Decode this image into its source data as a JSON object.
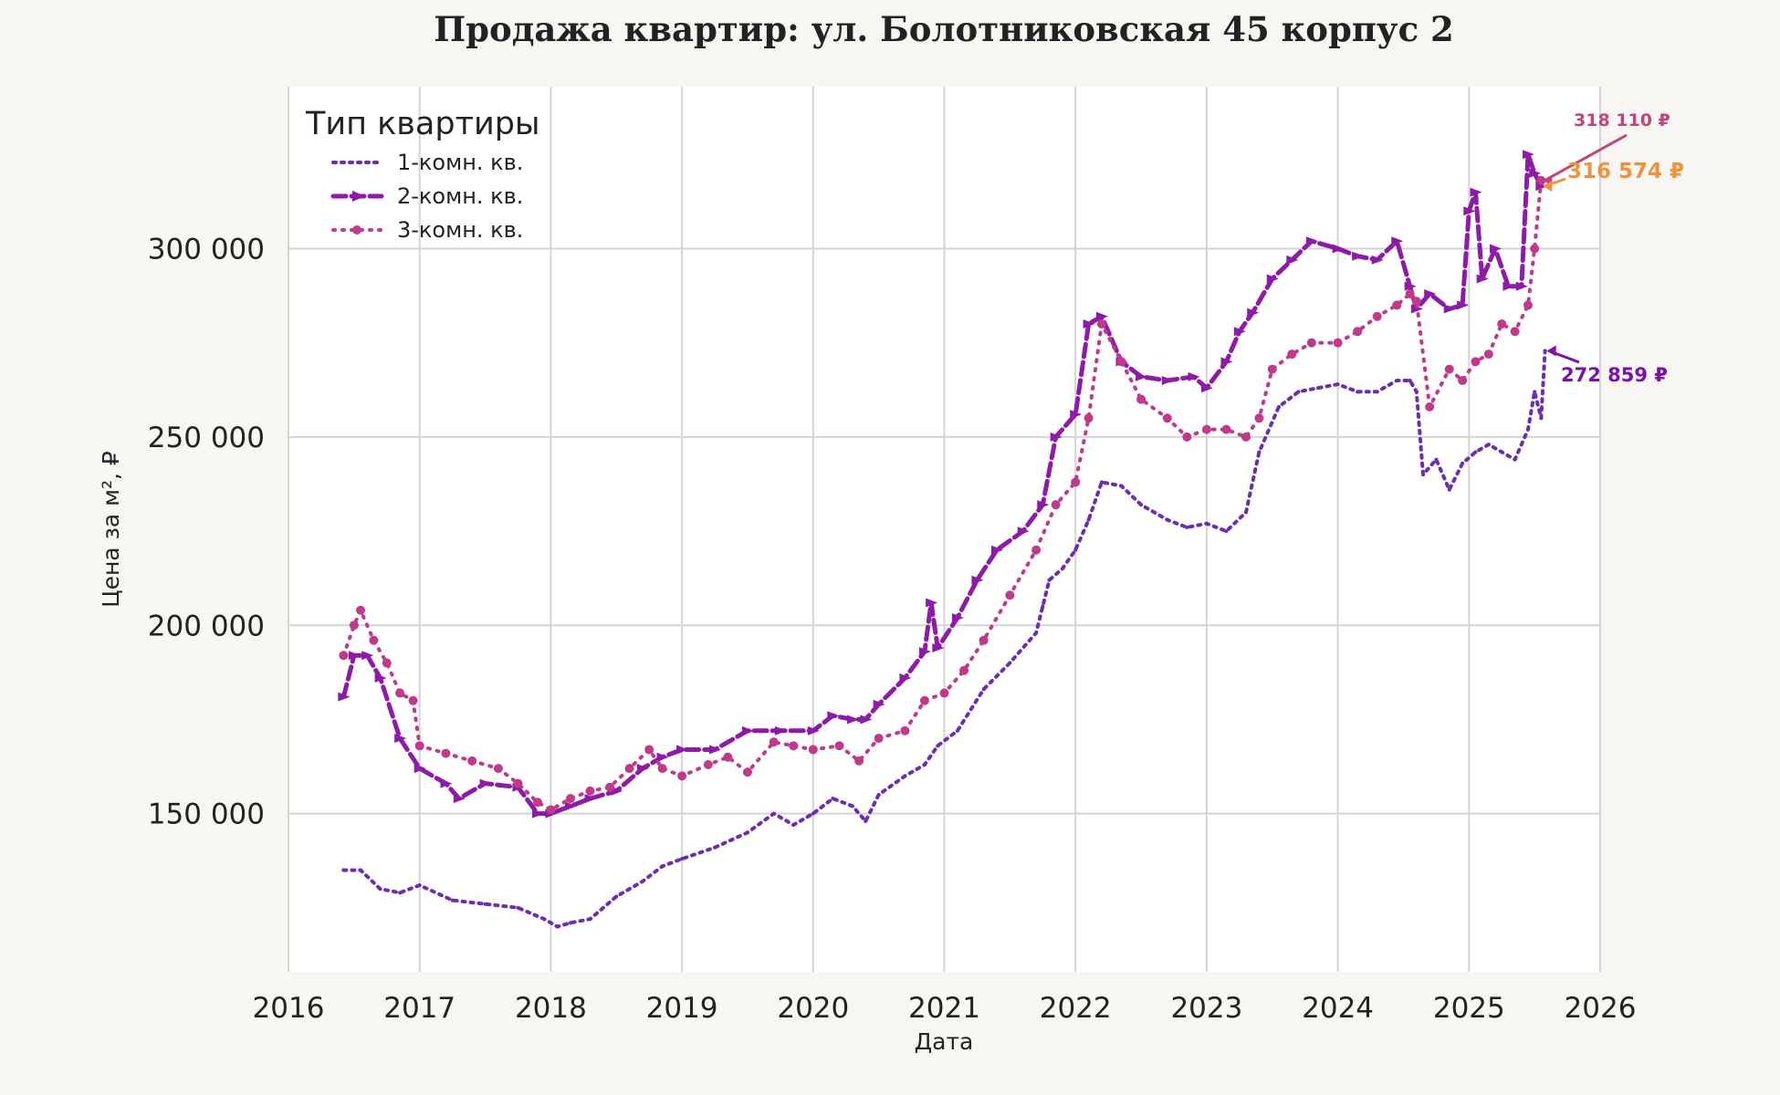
{
  "chart_data": {
    "type": "line",
    "title": "Продажа квартир: ул. Болотниковская 45 корпус 2",
    "xlabel": "Дата",
    "ylabel": "Цена за м², ₽",
    "x_tick_labels": [
      "2016",
      "2017",
      "2018",
      "2019",
      "2020",
      "2021",
      "2022",
      "2023",
      "2024",
      "2025",
      "2026"
    ],
    "y_tick_labels": [
      "150 000",
      "200 000",
      "250 000",
      "300 000"
    ],
    "x_ticks": [
      2016,
      2017,
      2018,
      2019,
      2020,
      2021,
      2022,
      2023,
      2024,
      2025,
      2026
    ],
    "y_ticks": [
      150000,
      200000,
      250000,
      300000
    ],
    "xlim": [
      2016,
      2026
    ],
    "ylim": [
      108000,
      343000
    ],
    "grid": true,
    "legend": {
      "title": "Тип квартиры",
      "placement": "top-left"
    },
    "series": [
      {
        "name": "1-комн. кв.",
        "color": "#6a2db4",
        "style": "dotted",
        "x": [
          2016.42,
          2016.55,
          2016.7,
          2016.85,
          2017.0,
          2017.25,
          2017.5,
          2017.75,
          2017.95,
          2018.05,
          2018.15,
          2018.3,
          2018.5,
          2018.7,
          2018.85,
          2019.0,
          2019.25,
          2019.5,
          2019.7,
          2019.85,
          2020.0,
          2020.15,
          2020.3,
          2020.4,
          2020.5,
          2020.7,
          2020.85,
          2020.95,
          2021.1,
          2021.3,
          2021.5,
          2021.7,
          2021.75,
          2021.8,
          2021.9,
          2022.0,
          2022.1,
          2022.2,
          2022.35,
          2022.5,
          2022.7,
          2022.85,
          2023.0,
          2023.15,
          2023.3,
          2023.4,
          2023.55,
          2023.7,
          2023.85,
          2024.0,
          2024.15,
          2024.3,
          2024.45,
          2024.55,
          2024.6,
          2024.65,
          2024.75,
          2024.85,
          2024.95,
          2025.05,
          2025.15,
          2025.25,
          2025.35,
          2025.45,
          2025.5,
          2025.55,
          2025.58
        ],
        "y": [
          135000,
          135000,
          130000,
          129000,
          131000,
          127000,
          126000,
          125000,
          122000,
          120000,
          121000,
          122000,
          128000,
          132000,
          136000,
          138000,
          141000,
          145000,
          150000,
          147000,
          150000,
          154000,
          152000,
          148000,
          155000,
          160000,
          163000,
          168000,
          172000,
          183000,
          190000,
          198000,
          205000,
          212000,
          215000,
          220000,
          228000,
          238000,
          237000,
          232000,
          228000,
          226000,
          227000,
          225000,
          230000,
          246000,
          258000,
          262000,
          263000,
          264000,
          262000,
          262000,
          265000,
          265000,
          262000,
          240000,
          244000,
          236000,
          243000,
          246000,
          248000,
          246000,
          244000,
          252000,
          262000,
          255000,
          272859
        ]
      },
      {
        "name": "2-комн. кв.",
        "color": "#8e1aa8",
        "style": "dashed-arrow",
        "x": [
          2016.42,
          2016.5,
          2016.6,
          2016.7,
          2016.85,
          2017.0,
          2017.2,
          2017.3,
          2017.5,
          2017.75,
          2017.9,
          2018.0,
          2018.15,
          2018.3,
          2018.5,
          2018.7,
          2018.85,
          2019.0,
          2019.25,
          2019.5,
          2019.75,
          2020.0,
          2020.15,
          2020.3,
          2020.4,
          2020.5,
          2020.7,
          2020.85,
          2020.9,
          2020.95,
          2021.1,
          2021.25,
          2021.4,
          2021.6,
          2021.75,
          2021.85,
          2022.0,
          2022.1,
          2022.2,
          2022.35,
          2022.5,
          2022.7,
          2022.9,
          2023.0,
          2023.15,
          2023.25,
          2023.35,
          2023.5,
          2023.65,
          2023.8,
          2024.0,
          2024.15,
          2024.3,
          2024.45,
          2024.55,
          2024.6,
          2024.7,
          2024.85,
          2024.95,
          2025.0,
          2025.05,
          2025.1,
          2025.2,
          2025.3,
          2025.4,
          2025.45,
          2025.5,
          2025.55
        ],
        "y": [
          181000,
          192000,
          192000,
          186000,
          170000,
          162000,
          158000,
          154000,
          158000,
          157000,
          150000,
          150000,
          152000,
          154000,
          156000,
          162000,
          165000,
          167000,
          167000,
          172000,
          172000,
          172000,
          176000,
          175000,
          175000,
          179000,
          186000,
          193000,
          206000,
          194000,
          202000,
          212000,
          220000,
          225000,
          232000,
          250000,
          256000,
          280000,
          282000,
          270000,
          266000,
          265000,
          266000,
          263000,
          270000,
          278000,
          283000,
          292000,
          297000,
          302000,
          300000,
          298000,
          297000,
          302000,
          290000,
          284000,
          288000,
          284000,
          285000,
          310000,
          315000,
          292000,
          300000,
          290000,
          290000,
          325000,
          320000,
          316574
        ]
      },
      {
        "name": "3-комн. кв.",
        "color": "#c0398a",
        "style": "dotted-circle",
        "x": [
          2016.42,
          2016.5,
          2016.55,
          2016.65,
          2016.75,
          2016.85,
          2016.95,
          2017.0,
          2017.2,
          2017.4,
          2017.6,
          2017.75,
          2017.9,
          2018.0,
          2018.15,
          2018.3,
          2018.45,
          2018.6,
          2018.75,
          2018.85,
          2019.0,
          2019.2,
          2019.35,
          2019.5,
          2019.7,
          2019.85,
          2020.0,
          2020.2,
          2020.35,
          2020.5,
          2020.7,
          2020.85,
          2021.0,
          2021.15,
          2021.3,
          2021.5,
          2021.7,
          2021.85,
          2022.0,
          2022.1,
          2022.2,
          2022.35,
          2022.5,
          2022.7,
          2022.85,
          2023.0,
          2023.15,
          2023.3,
          2023.4,
          2023.5,
          2023.65,
          2023.8,
          2024.0,
          2024.15,
          2024.3,
          2024.45,
          2024.55,
          2024.6,
          2024.7,
          2024.85,
          2024.95,
          2025.05,
          2025.15,
          2025.25,
          2025.35,
          2025.45,
          2025.5,
          2025.55
        ],
        "y": [
          192000,
          200000,
          204000,
          196000,
          190000,
          182000,
          180000,
          168000,
          166000,
          164000,
          162000,
          158000,
          153000,
          151000,
          154000,
          156000,
          157000,
          162000,
          167000,
          162000,
          160000,
          163000,
          165000,
          161000,
          169000,
          168000,
          167000,
          168000,
          164000,
          170000,
          172000,
          180000,
          182000,
          188000,
          196000,
          208000,
          220000,
          232000,
          238000,
          255000,
          280000,
          270000,
          260000,
          255000,
          250000,
          252000,
          252000,
          250000,
          255000,
          268000,
          272000,
          275000,
          275000,
          278000,
          282000,
          285000,
          288000,
          286000,
          258000,
          268000,
          265000,
          270000,
          272000,
          280000,
          278000,
          285000,
          300000,
          318110
        ]
      }
    ],
    "annotations": [
      {
        "text": "318 110 ₽",
        "color": "#c0457c",
        "series": "3-комн. кв."
      },
      {
        "text": "316 574 ₽",
        "color": "#f0923c",
        "series": "2-комн. кв."
      },
      {
        "text": "272 859 ₽",
        "color": "#7a11a8",
        "series": "1-комн. кв."
      }
    ]
  }
}
